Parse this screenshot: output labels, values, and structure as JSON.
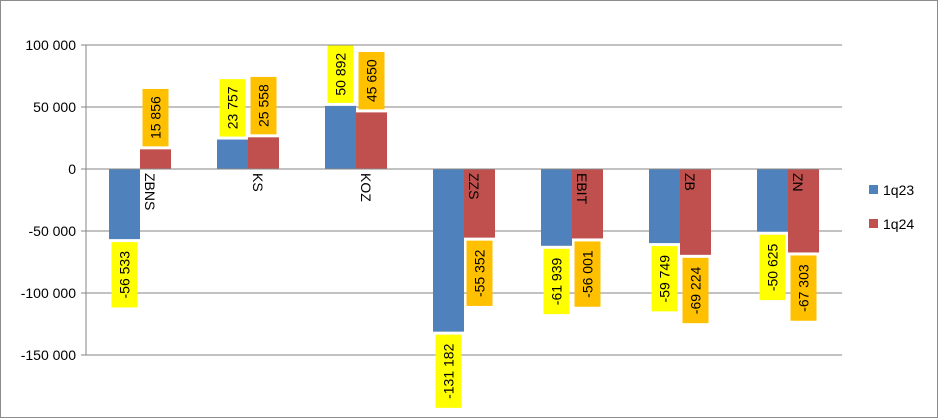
{
  "chart_data": {
    "type": "bar",
    "categories": [
      "ZBNS",
      "KS",
      "KOZ",
      "ZZS",
      "EBIT",
      "ZB",
      "ZN"
    ],
    "series": [
      {
        "name": "1q23",
        "values": [
          -56533,
          23757,
          50892,
          -131182,
          -61939,
          -59749,
          -50625
        ],
        "labels": [
          "-56 533",
          "23 757",
          "50 892",
          "-131 182",
          "-61 939",
          "-59 749",
          "-50 625"
        ],
        "color": "#4f81bd",
        "label_bg": "#ffff00"
      },
      {
        "name": "1q24",
        "values": [
          15856,
          25558,
          45650,
          -55352,
          -56001,
          -69224,
          -67303
        ],
        "labels": [
          "15 856",
          "25 558",
          "45 650",
          "-55 352",
          "-56 001",
          "-69 224",
          "-67 303"
        ],
        "color": "#c0504d",
        "label_bg": "#ffc000"
      }
    ],
    "yticks": [
      100000,
      50000,
      0,
      -50000,
      -100000,
      -150000
    ],
    "ytick_labels": [
      "100 000",
      "50 000",
      "0",
      "-50 000",
      "-100 000",
      "-150 000"
    ],
    "ylim": [
      -150000,
      100000
    ],
    "grid": true,
    "legend_position": "right"
  }
}
